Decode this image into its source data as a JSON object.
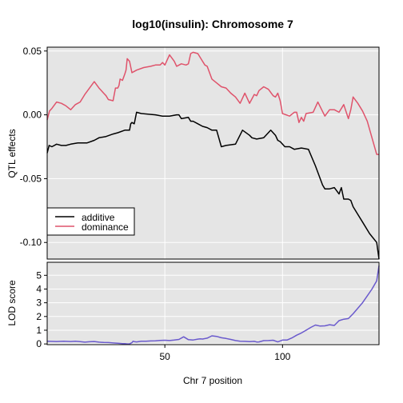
{
  "chart_data": [
    {
      "type": "line",
      "title": "log10(insulin): Chromosome 7",
      "xlabel": "Chr 7 position",
      "ylabel": "QTL effects",
      "xlim": [
        0,
        141
      ],
      "ylim": [
        -0.113,
        0.053
      ],
      "yticks": [
        0.05,
        0.0,
        -0.05,
        -0.1
      ],
      "ytick_labels": [
        "0.05",
        "0.00",
        "-0.05",
        "-0.10"
      ],
      "grid": true,
      "legend_position": "bottom-left",
      "series": [
        {
          "name": "additive",
          "color": "#000000",
          "x": [
            0,
            0.8,
            2,
            4,
            6,
            8,
            10,
            13,
            17,
            20,
            22,
            25,
            28,
            30,
            33,
            34,
            35,
            35.5,
            36,
            37,
            38,
            40,
            46,
            49,
            50,
            52,
            55,
            56,
            57,
            60,
            61,
            62,
            64,
            66,
            68,
            70,
            72,
            74,
            76,
            80,
            83,
            86,
            87,
            89,
            92,
            95,
            97,
            98,
            99,
            100,
            101,
            103,
            105,
            108,
            111,
            114,
            117,
            118,
            120,
            122,
            124,
            125,
            126,
            128,
            129,
            130,
            132,
            134,
            137,
            140,
            141
          ],
          "y": [
            -0.03,
            -0.024,
            -0.025,
            -0.023,
            -0.024,
            -0.024,
            -0.023,
            -0.022,
            -0.022,
            -0.02,
            -0.018,
            -0.017,
            -0.015,
            -0.014,
            -0.012,
            -0.012,
            -0.012,
            -0.007,
            -0.006,
            -0.007,
            0.002,
            0.001,
            0.0,
            -0.001,
            -0.001,
            -0.001,
            0.0,
            0.0,
            -0.003,
            -0.002,
            -0.005,
            -0.005,
            -0.007,
            -0.009,
            -0.01,
            -0.012,
            -0.012,
            -0.025,
            -0.024,
            -0.023,
            -0.012,
            -0.016,
            -0.018,
            -0.019,
            -0.018,
            -0.012,
            -0.016,
            -0.02,
            -0.021,
            -0.023,
            -0.025,
            -0.025,
            -0.027,
            -0.026,
            -0.027,
            -0.04,
            -0.055,
            -0.058,
            -0.058,
            -0.057,
            -0.062,
            -0.057,
            -0.066,
            -0.066,
            -0.067,
            -0.072,
            -0.078,
            -0.084,
            -0.093,
            -0.1,
            -0.113
          ]
        },
        {
          "name": "dominance",
          "color": "#DF536B",
          "x": [
            0,
            1,
            2,
            4,
            6,
            8,
            10,
            12,
            14,
            16,
            18,
            20,
            22,
            23,
            24,
            25,
            26,
            28,
            29,
            30,
            30.5,
            31,
            32,
            33,
            33.5,
            34,
            35,
            36,
            37,
            38,
            41,
            44,
            46,
            48,
            49,
            50,
            52,
            54,
            55,
            57,
            59,
            60,
            61,
            62,
            64,
            66,
            67,
            68,
            70,
            72,
            74,
            76,
            78,
            80,
            82,
            84,
            86,
            88,
            89,
            90,
            92,
            94,
            96,
            97,
            98,
            99,
            100,
            103,
            105,
            106,
            107,
            108,
            109,
            110,
            113,
            115,
            118,
            120,
            122,
            124,
            126,
            128,
            129,
            130,
            132,
            134,
            136,
            140,
            141
          ],
          "y": [
            -0.004,
            0.003,
            0.005,
            0.01,
            0.009,
            0.007,
            0.004,
            0.008,
            0.01,
            0.016,
            0.021,
            0.026,
            0.021,
            0.019,
            0.017,
            0.015,
            0.012,
            0.011,
            0.021,
            0.021,
            0.023,
            0.028,
            0.027,
            0.032,
            0.035,
            0.044,
            0.042,
            0.033,
            0.034,
            0.035,
            0.037,
            0.038,
            0.039,
            0.039,
            0.041,
            0.039,
            0.047,
            0.042,
            0.038,
            0.04,
            0.039,
            0.04,
            0.048,
            0.049,
            0.048,
            0.042,
            0.039,
            0.038,
            0.028,
            0.025,
            0.022,
            0.021,
            0.017,
            0.014,
            0.009,
            0.017,
            0.009,
            0.016,
            0.015,
            0.019,
            0.022,
            0.02,
            0.015,
            0.014,
            0.017,
            0.011,
            0.001,
            -0.001,
            0.002,
            0.002,
            -0.006,
            -0.002,
            -0.005,
            0.001,
            0.002,
            0.01,
            -0.001,
            0.004,
            0.004,
            0.002,
            0.008,
            -0.003,
            0.004,
            0.014,
            0.009,
            0.003,
            -0.005,
            -0.031,
            -0.031
          ]
        }
      ]
    },
    {
      "type": "line",
      "xlabel": "Chr 7 position",
      "ylabel": "LOD score",
      "xlim": [
        0,
        141
      ],
      "ylim": [
        -0.05,
        5.95
      ],
      "xticks": [
        50,
        100
      ],
      "xtick_labels": [
        "50",
        "100"
      ],
      "yticks": [
        0,
        1,
        2,
        3,
        4,
        5
      ],
      "ytick_labels": [
        "0",
        "1",
        "2",
        "3",
        "4",
        "5"
      ],
      "grid": true,
      "series": [
        {
          "color": "#6A5ACD",
          "x": [
            0,
            4,
            7,
            10,
            12,
            14,
            16,
            18,
            20,
            22,
            24,
            26,
            28,
            30,
            32,
            33,
            34,
            35,
            36,
            36.5,
            37,
            38,
            40,
            42,
            44,
            46,
            48,
            50,
            52,
            54,
            56,
            58,
            60,
            62,
            64,
            65,
            66,
            68,
            70,
            72,
            74,
            76,
            78,
            80,
            82,
            84,
            86,
            88,
            89,
            90,
            92,
            94,
            96,
            98,
            100,
            102,
            104,
            106,
            108,
            110,
            112,
            114,
            116,
            118,
            120,
            122,
            124,
            126,
            128,
            130,
            132,
            134,
            136,
            138,
            140,
            141
          ],
          "y": [
            0.2,
            0.18,
            0.2,
            0.18,
            0.2,
            0.17,
            0.13,
            0.16,
            0.18,
            0.13,
            0.11,
            0.1,
            0.07,
            0.05,
            0.02,
            0.02,
            0.0,
            0.0,
            0.09,
            0.2,
            0.17,
            0.15,
            0.2,
            0.2,
            0.22,
            0.23,
            0.26,
            0.27,
            0.25,
            0.28,
            0.33,
            0.52,
            0.31,
            0.29,
            0.35,
            0.37,
            0.36,
            0.42,
            0.59,
            0.55,
            0.45,
            0.4,
            0.33,
            0.25,
            0.2,
            0.19,
            0.17,
            0.19,
            0.14,
            0.15,
            0.24,
            0.25,
            0.27,
            0.15,
            0.28,
            0.29,
            0.44,
            0.64,
            0.8,
            1.0,
            1.2,
            1.38,
            1.3,
            1.32,
            1.4,
            1.35,
            1.7,
            1.8,
            1.85,
            2.2,
            2.6,
            3.0,
            3.5,
            4.0,
            4.6,
            5.7
          ]
        }
      ]
    }
  ]
}
